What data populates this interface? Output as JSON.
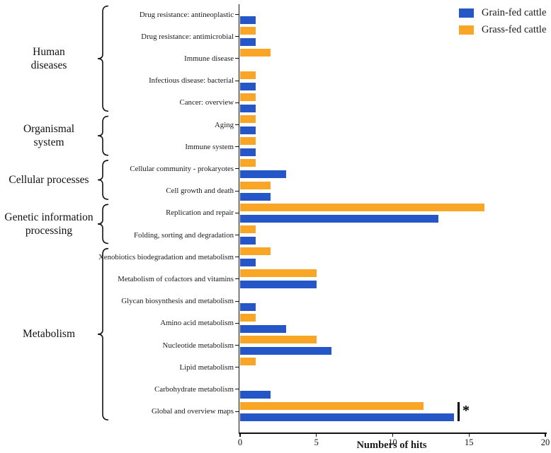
{
  "chart_data": {
    "type": "bar",
    "orientation": "horizontal",
    "xlabel": "Numbers of hits",
    "xlim": [
      0,
      20
    ],
    "xticks": [
      0,
      5,
      10,
      15,
      20
    ],
    "grid": false,
    "legend_position": "top-right",
    "categories": [
      "Drug resistance: antineoplastic",
      "Drug resistance: antimicrobial",
      "Immune disease",
      "Infectious disease: bacterial",
      "Cancer: overview",
      "Aging",
      "Immune system",
      "Cellular community - prokaryotes",
      "Cell growth and death",
      "Replication and repair",
      "Folding, sorting and degradation",
      "Xenobiotics biodegradation and metabolism",
      "Metabolism of cofactors and vitamins",
      "Glycan biosynthesis and metabolism",
      "Amino acid metabolism",
      "Nucleotide metabolism",
      "Lipid metabolism",
      "Carbohydrate metabolism",
      "Global and overview maps"
    ],
    "series": [
      {
        "name": "Grain-fed cattle",
        "color": "#2456C8",
        "values": [
          1,
          1,
          0,
          1,
          1,
          1,
          1,
          3,
          2,
          13,
          1,
          1,
          5,
          1,
          3,
          6,
          0,
          2,
          14
        ]
      },
      {
        "name": "Grass-fed cattle",
        "color": "#F9A627",
        "values": [
          0,
          1,
          2,
          1,
          1,
          1,
          1,
          1,
          2,
          16,
          1,
          2,
          5,
          0,
          1,
          5,
          1,
          0,
          12
        ]
      }
    ],
    "groups": [
      {
        "label": "Human\ndiseases",
        "start": 0,
        "end": 4
      },
      {
        "label": "Organismal\nsystem",
        "start": 5,
        "end": 6
      },
      {
        "label": "Cellular processes",
        "start": 7,
        "end": 8
      },
      {
        "label": "Genetic information\nprocessing",
        "start": 9,
        "end": 10
      },
      {
        "label": "Metabolism",
        "start": 11,
        "end": 18
      }
    ],
    "annotation": {
      "symbol": "*",
      "category": "Global and overview maps",
      "category_index": 18
    }
  },
  "legend": {
    "items": [
      {
        "label": "Grain-fed cattle",
        "color": "#2456C8"
      },
      {
        "label": "Grass-fed cattle",
        "color": "#F9A627"
      }
    ]
  },
  "axis": {
    "xlabel": "Numbers of hits",
    "tick_labels": [
      "0",
      "5",
      "10",
      "15",
      "20"
    ]
  }
}
